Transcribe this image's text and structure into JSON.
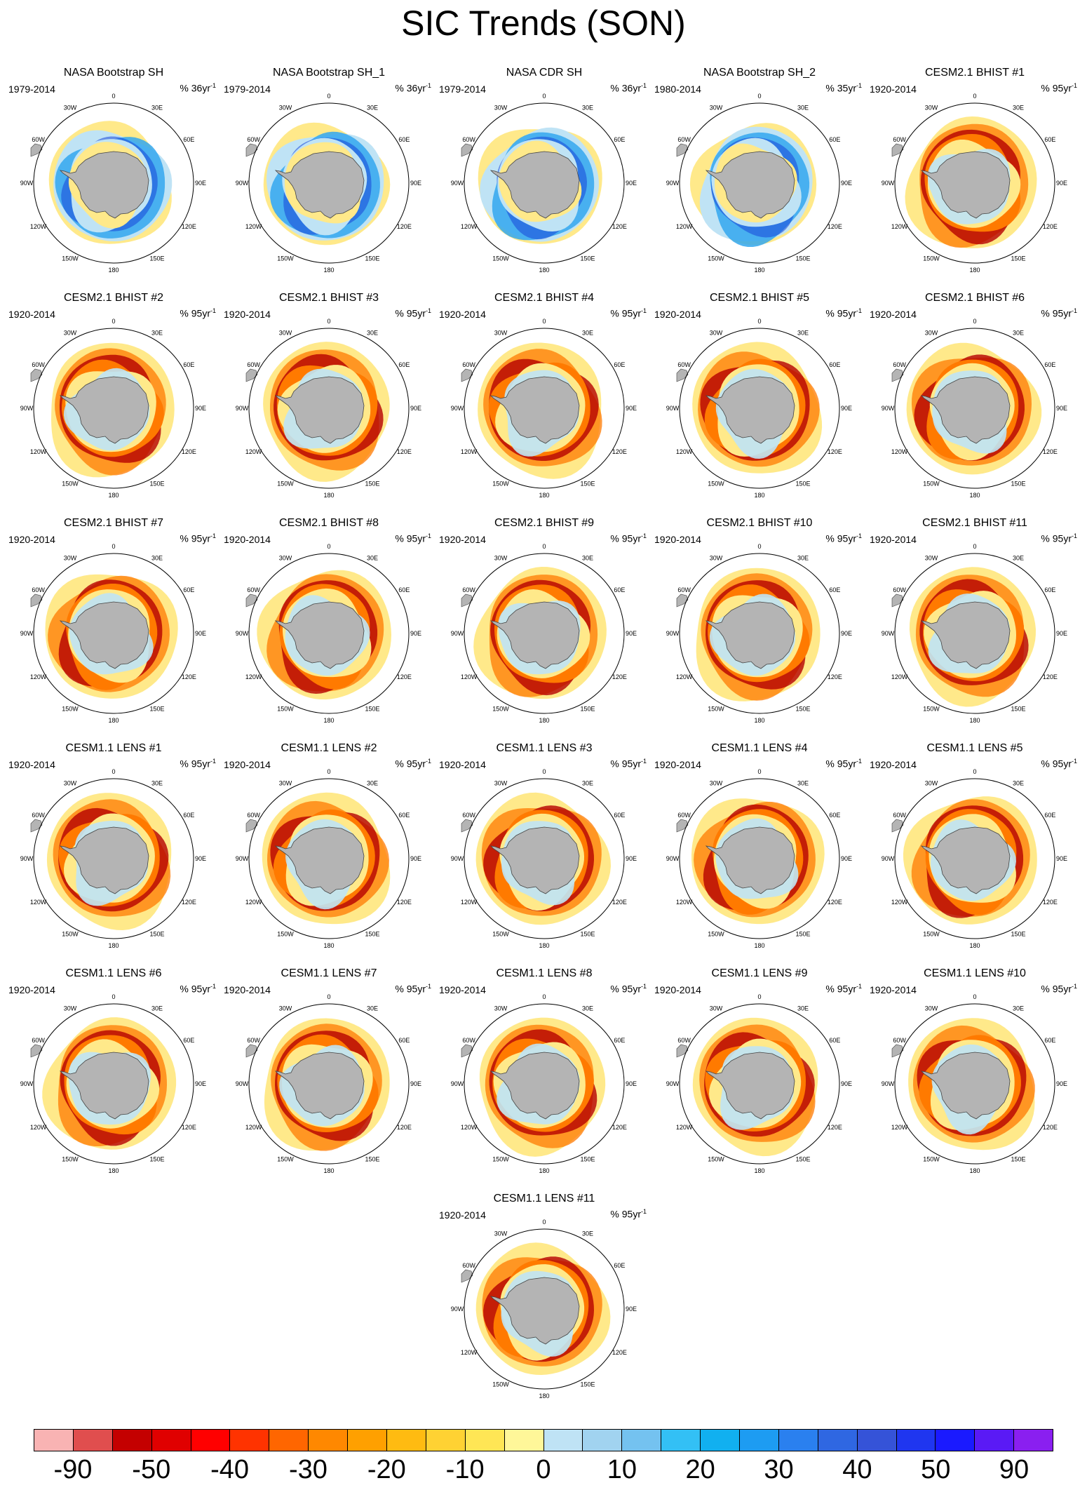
{
  "title": "SIC Trends (SON)",
  "longitude_labels": [
    "0",
    "30E",
    "60E",
    "90E",
    "120E",
    "150E",
    "180",
    "150W",
    "120W",
    "90W",
    "60W",
    "30W"
  ],
  "colors": {
    "land": "#b4b4b4",
    "coast": "#444444",
    "negative_strong": "#b50000",
    "negative_mid": "#ff7a00",
    "negative_weak": "#ffe98a",
    "positive_weak": "#bfe3f5",
    "positive_mid": "#33a7ee",
    "positive_strong": "#1746d8"
  },
  "panels": [
    {
      "title": "NASA Bootstrap SH",
      "years": "1979-2014",
      "units_pct": "% 36yr",
      "units_exp": "-1",
      "kind": "obs"
    },
    {
      "title": "NASA Bootstrap SH_1",
      "years": "1979-2014",
      "units_pct": "% 36yr",
      "units_exp": "-1",
      "kind": "obs"
    },
    {
      "title": "NASA CDR SH",
      "years": "1979-2014",
      "units_pct": "% 36yr",
      "units_exp": "-1",
      "kind": "obs"
    },
    {
      "title": "NASA Bootstrap SH_2",
      "years": "1980-2014",
      "units_pct": "% 35yr",
      "units_exp": "-1",
      "kind": "obs"
    },
    {
      "title": "CESM2.1 BHIST #1",
      "years": "1920-2014",
      "units_pct": "% 95yr",
      "units_exp": "-1",
      "kind": "model"
    },
    {
      "title": "CESM2.1 BHIST #2",
      "years": "1920-2014",
      "units_pct": "% 95yr",
      "units_exp": "-1",
      "kind": "model"
    },
    {
      "title": "CESM2.1 BHIST #3",
      "years": "1920-2014",
      "units_pct": "% 95yr",
      "units_exp": "-1",
      "kind": "model"
    },
    {
      "title": "CESM2.1 BHIST #4",
      "years": "1920-2014",
      "units_pct": "% 95yr",
      "units_exp": "-1",
      "kind": "model"
    },
    {
      "title": "CESM2.1 BHIST #5",
      "years": "1920-2014",
      "units_pct": "% 95yr",
      "units_exp": "-1",
      "kind": "model"
    },
    {
      "title": "CESM2.1 BHIST #6",
      "years": "1920-2014",
      "units_pct": "% 95yr",
      "units_exp": "-1",
      "kind": "model"
    },
    {
      "title": "CESM2.1 BHIST #7",
      "years": "1920-2014",
      "units_pct": "% 95yr",
      "units_exp": "-1",
      "kind": "model"
    },
    {
      "title": "CESM2.1 BHIST #8",
      "years": "1920-2014",
      "units_pct": "% 95yr",
      "units_exp": "-1",
      "kind": "model"
    },
    {
      "title": "CESM2.1 BHIST #9",
      "years": "1920-2014",
      "units_pct": "% 95yr",
      "units_exp": "-1",
      "kind": "model"
    },
    {
      "title": "CESM2.1 BHIST #10",
      "years": "1920-2014",
      "units_pct": "% 95yr",
      "units_exp": "-1",
      "kind": "model"
    },
    {
      "title": "CESM2.1 BHIST #11",
      "years": "1920-2014",
      "units_pct": "% 95yr",
      "units_exp": "-1",
      "kind": "model"
    },
    {
      "title": "CESM1.1 LENS #1",
      "years": "1920-2014",
      "units_pct": "% 95yr",
      "units_exp": "-1",
      "kind": "model"
    },
    {
      "title": "CESM1.1 LENS #2",
      "years": "1920-2014",
      "units_pct": "% 95yr",
      "units_exp": "-1",
      "kind": "model"
    },
    {
      "title": "CESM1.1 LENS #3",
      "years": "1920-2014",
      "units_pct": "% 95yr",
      "units_exp": "-1",
      "kind": "model"
    },
    {
      "title": "CESM1.1 LENS #4",
      "years": "1920-2014",
      "units_pct": "% 95yr",
      "units_exp": "-1",
      "kind": "model"
    },
    {
      "title": "CESM1.1 LENS #5",
      "years": "1920-2014",
      "units_pct": "% 95yr",
      "units_exp": "-1",
      "kind": "model"
    },
    {
      "title": "CESM1.1 LENS #6",
      "years": "1920-2014",
      "units_pct": "% 95yr",
      "units_exp": "-1",
      "kind": "model"
    },
    {
      "title": "CESM1.1 LENS #7",
      "years": "1920-2014",
      "units_pct": "% 95yr",
      "units_exp": "-1",
      "kind": "model"
    },
    {
      "title": "CESM1.1 LENS #8",
      "years": "1920-2014",
      "units_pct": "% 95yr",
      "units_exp": "-1",
      "kind": "model"
    },
    {
      "title": "CESM1.1 LENS #9",
      "years": "1920-2014",
      "units_pct": "% 95yr",
      "units_exp": "-1",
      "kind": "model"
    },
    {
      "title": "CESM1.1 LENS #10",
      "years": "1920-2014",
      "units_pct": "% 95yr",
      "units_exp": "-1",
      "kind": "model"
    },
    {
      "title": "CESM1.1 LENS #11",
      "years": "1920-2014",
      "units_pct": "% 95yr",
      "units_exp": "-1",
      "kind": "model"
    }
  ],
  "chart_data": {
    "type": "heatmap",
    "title": "SIC Trends (SON)",
    "projection": "south polar stereographic",
    "colorbar": {
      "colors": [
        "#f9b3b3",
        "#e04e4e",
        "#c40000",
        "#e00000",
        "#ff0000",
        "#ff3300",
        "#ff6600",
        "#ff8800",
        "#ffa000",
        "#ffbb11",
        "#ffd233",
        "#ffe655",
        "#fff799",
        "#bfe3f5",
        "#a1d3f0",
        "#74c2f0",
        "#33c0f5",
        "#11b0f0",
        "#1d9cf2",
        "#2a80ef",
        "#2f67e2",
        "#3553d8",
        "#1f36f0",
        "#1a1aff",
        "#5a1af5",
        "#8a1ff0"
      ],
      "labels": [
        "-90",
        "-50",
        "-40",
        "-30",
        "-20",
        "-10",
        "0",
        "10",
        "20",
        "30",
        "40",
        "50",
        "90"
      ]
    }
  }
}
